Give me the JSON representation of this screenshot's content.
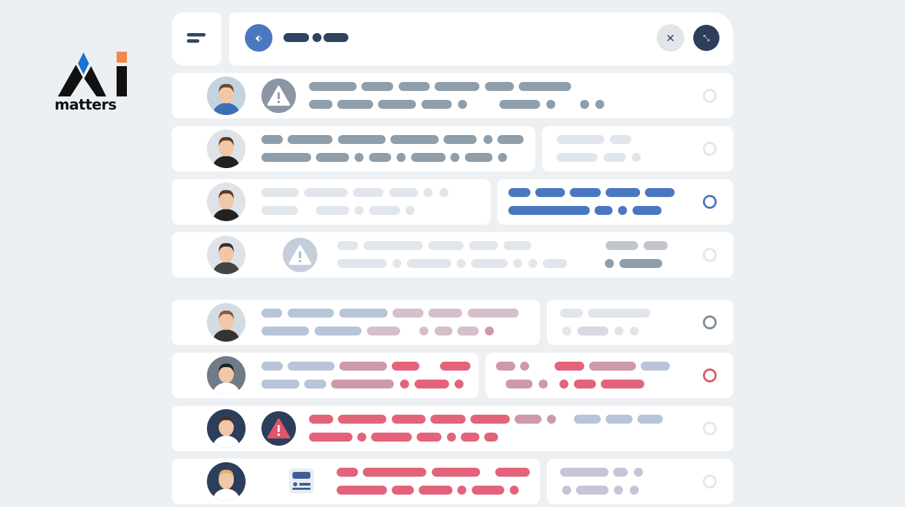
{
  "logo": {
    "text": "AI matters",
    "word": "matters"
  },
  "colors": {
    "background": "#edf0f3",
    "blue_accent": "#4a78c0",
    "red_accent": "#e0556b",
    "dark": "#2c3e5a",
    "gray_bar": "#8f9eab",
    "light_bar": "#e1e6ec"
  },
  "header": {
    "menu_icon": "hamburger-icon",
    "app_icon": "tag-icon",
    "close_icon": "close-icon",
    "action_icon": "expand-icon"
  },
  "rows": [
    {
      "status": "unselected",
      "ring_color": "#e2e6ea",
      "icon": "warning-icon"
    },
    {
      "status": "unselected",
      "ring_color": "#e2e6ea",
      "icon": ""
    },
    {
      "status": "selected",
      "ring_color": "#4a78c0",
      "icon": ""
    },
    {
      "status": "unselected",
      "ring_color": "#e2e6ea",
      "icon": "warning-icon"
    },
    {
      "status": "selected",
      "ring_color": "#7f8a94",
      "icon": ""
    },
    {
      "status": "selected",
      "ring_color": "#e0556b",
      "icon": ""
    },
    {
      "status": "unselected",
      "ring_color": "#e2e6ea",
      "icon": "warning-icon-red"
    },
    {
      "status": "unselected",
      "ring_color": "#e2e6ea",
      "icon": "id-card-icon"
    }
  ]
}
